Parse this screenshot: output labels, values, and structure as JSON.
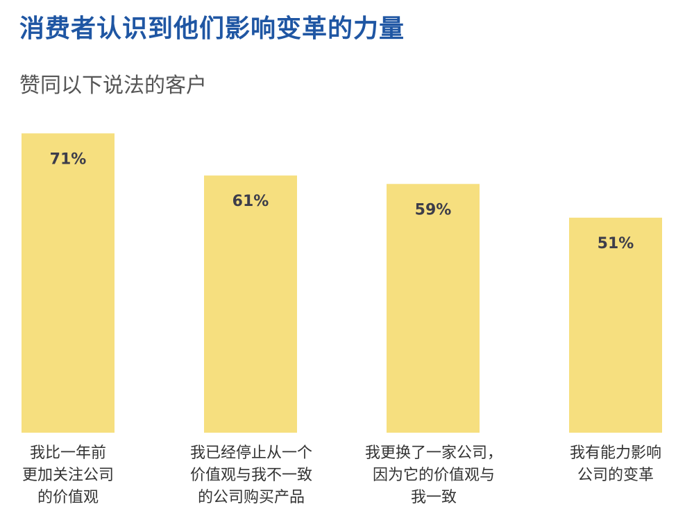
{
  "title": "消费者认识到他们影响变革的力量",
  "subtitle": "赞同以下说法的客户",
  "colors": {
    "title": "#1f56a3",
    "bar": "#f6df7f",
    "value_label": "#3d3d4a",
    "category_label": "#333333"
  },
  "chart_data": {
    "type": "bar",
    "categories": [
      "我比一年前\n更加关注公司\n的价值观",
      "我已经停止从一个\n价值观与我不一致\n的公司购买产品",
      "我更换了一家公司，\n因为它的价值观与\n我一致",
      "我有能力影响\n公司的变革"
    ],
    "values": [
      71,
      61,
      59,
      51
    ],
    "value_labels": [
      "71%",
      "61%",
      "59%",
      "51%"
    ],
    "ylim": [
      0,
      100
    ],
    "grid": false,
    "legend": "none"
  }
}
